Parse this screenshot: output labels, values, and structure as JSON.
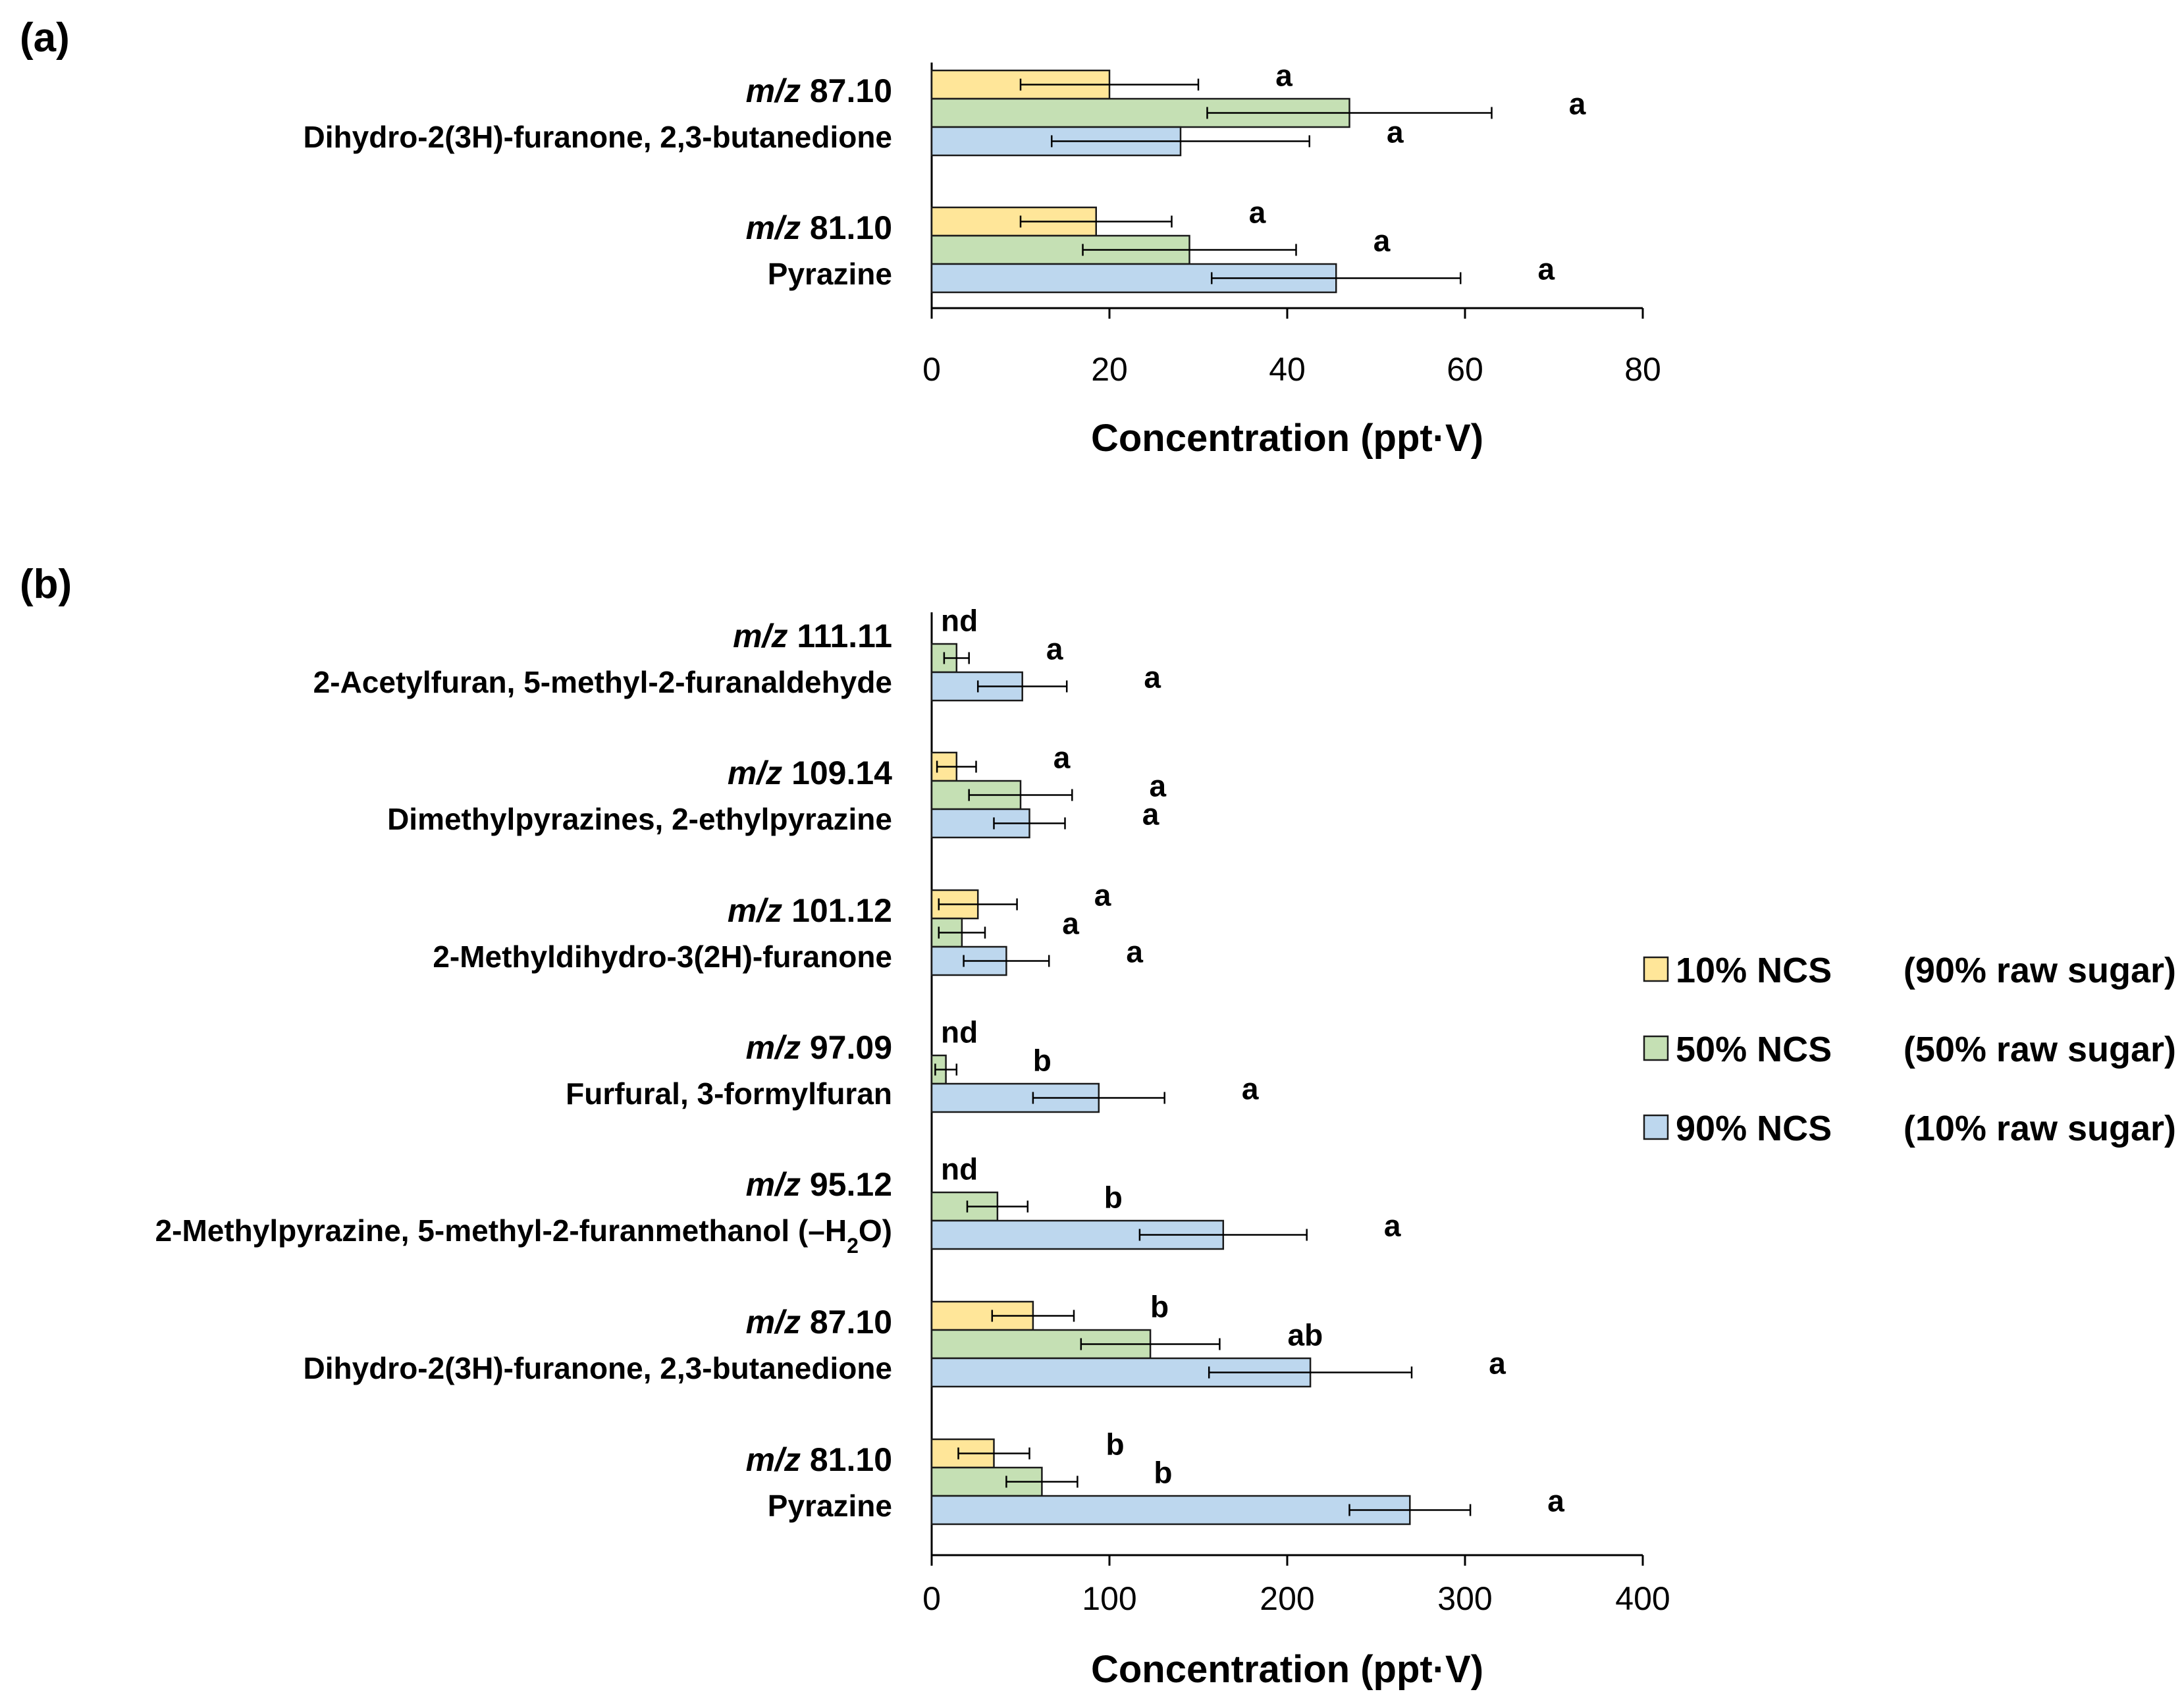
{
  "series_colors": {
    "10% NCS": "#FFE699",
    "50% NCS": "#C5E0B4",
    "90% NCS": "#BDD7EE"
  },
  "legend": [
    {
      "name": "10% NCS",
      "detail": "(90% raw sugar)"
    },
    {
      "name": "50% NCS",
      "detail": "(50% raw sugar)"
    },
    {
      "name": "90% NCS",
      "detail": "(10% raw sugar)"
    }
  ],
  "chart_data": [
    {
      "panel": "(a)",
      "type": "bar",
      "orientation": "horizontal",
      "xlabel": "Concentration (ppt·V)",
      "xlim": [
        0,
        80
      ],
      "xticks": [
        0,
        20,
        40,
        60,
        80
      ],
      "categories": [
        {
          "mz": "87.10",
          "compound": "Dihydro-2(3H)-furanone, 2,3-butanedione"
        },
        {
          "mz": "81.10",
          "compound": "Pyrazine"
        }
      ],
      "series": [
        {
          "name": "10% NCS",
          "values": [
            20,
            18.5
          ],
          "errors": [
            10,
            8.5
          ],
          "letters": [
            "a",
            "a"
          ]
        },
        {
          "name": "50% NCS",
          "values": [
            47,
            29
          ],
          "errors": [
            16,
            12
          ],
          "letters": [
            "a",
            "a"
          ]
        },
        {
          "name": "90% NCS",
          "values": [
            28,
            45.5
          ],
          "errors": [
            14.5,
            14
          ],
          "letters": [
            "a",
            "a"
          ]
        }
      ]
    },
    {
      "panel": "(b)",
      "type": "bar",
      "orientation": "horizontal",
      "xlabel": "Concentration (ppt·V)",
      "xlim": [
        0,
        400
      ],
      "xticks": [
        0,
        100,
        200,
        300,
        400
      ],
      "categories": [
        {
          "mz": "111.11",
          "compound": "2-Acetylfuran, 5-methyl-2-furanaldehyde"
        },
        {
          "mz": "109.14",
          "compound": "Dimethylpyrazines, 2-ethylpyrazine"
        },
        {
          "mz": "101.12",
          "compound": "2-Methyldihydro-3(2H)-furanone"
        },
        {
          "mz": "97.09",
          "compound": "Furfural, 3-formylfuran"
        },
        {
          "mz": "95.12",
          "compound": "2-Methylpyrazine, 5-methyl-2-furanmethanol (–H",
          "compound_sub": "2",
          "compound_tail": "O)"
        },
        {
          "mz": "87.10",
          "compound": "Dihydro-2(3H)-furanone, 2,3-butanedione"
        },
        {
          "mz": "81.10",
          "compound": "Pyrazine"
        }
      ],
      "series": [
        {
          "name": "10% NCS",
          "values": [
            0,
            14,
            26,
            0,
            0,
            57,
            35
          ],
          "errors": [
            0,
            11,
            22,
            0,
            0,
            23,
            20
          ],
          "letters": [
            "nd",
            "a",
            "a",
            "nd",
            "nd",
            "b",
            "b"
          ]
        },
        {
          "name": "50% NCS",
          "values": [
            14,
            50,
            17,
            8,
            37,
            123,
            62
          ],
          "errors": [
            7,
            29,
            13,
            6,
            17,
            39,
            20
          ],
          "letters": [
            "a",
            "a",
            "a",
            "b",
            "b",
            "ab",
            "b"
          ]
        },
        {
          "name": "90% NCS",
          "values": [
            51,
            55,
            42,
            94,
            164,
            213,
            269
          ],
          "errors": [
            25,
            20,
            24,
            37,
            47,
            57,
            34
          ],
          "letters": [
            "a",
            "a",
            "a",
            "a",
            "a",
            "a",
            "a"
          ]
        }
      ]
    }
  ]
}
